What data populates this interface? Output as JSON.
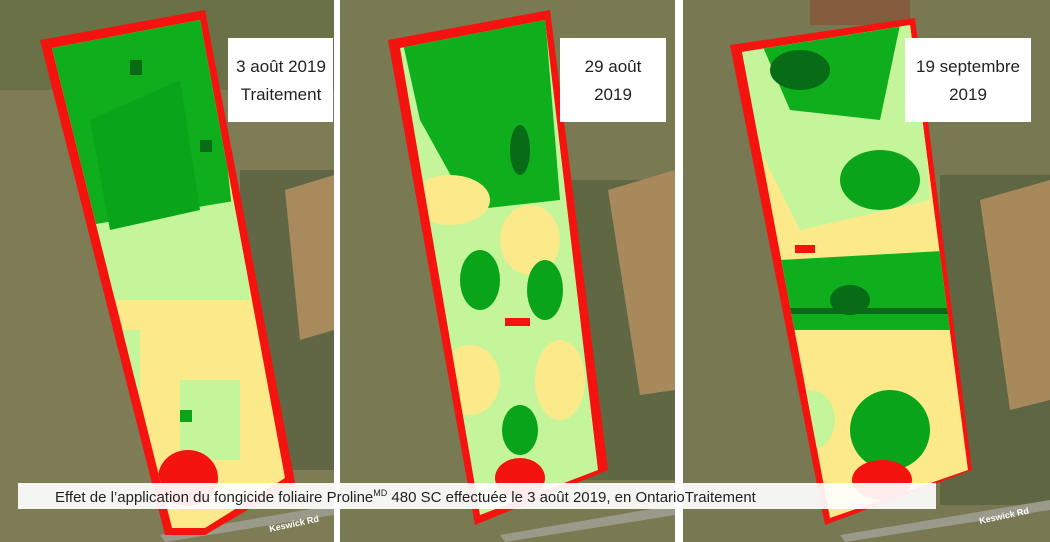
{
  "panels": [
    {
      "label": [
        "3 août 2019",
        "Traitement"
      ]
    },
    {
      "label": [
        "29 août",
        "2019"
      ]
    },
    {
      "label": [
        "19 septembre",
        "2019"
      ]
    }
  ],
  "caption": {
    "parts": [
      "Effet de l’application du fongicide foliaire Proline",
      "MD",
      " 480 SC effectuée le 3 août 2019, en Ontario",
      "Traitement"
    ]
  },
  "roads": [
    "Keswick Rd",
    "Keswick Rd"
  ]
}
